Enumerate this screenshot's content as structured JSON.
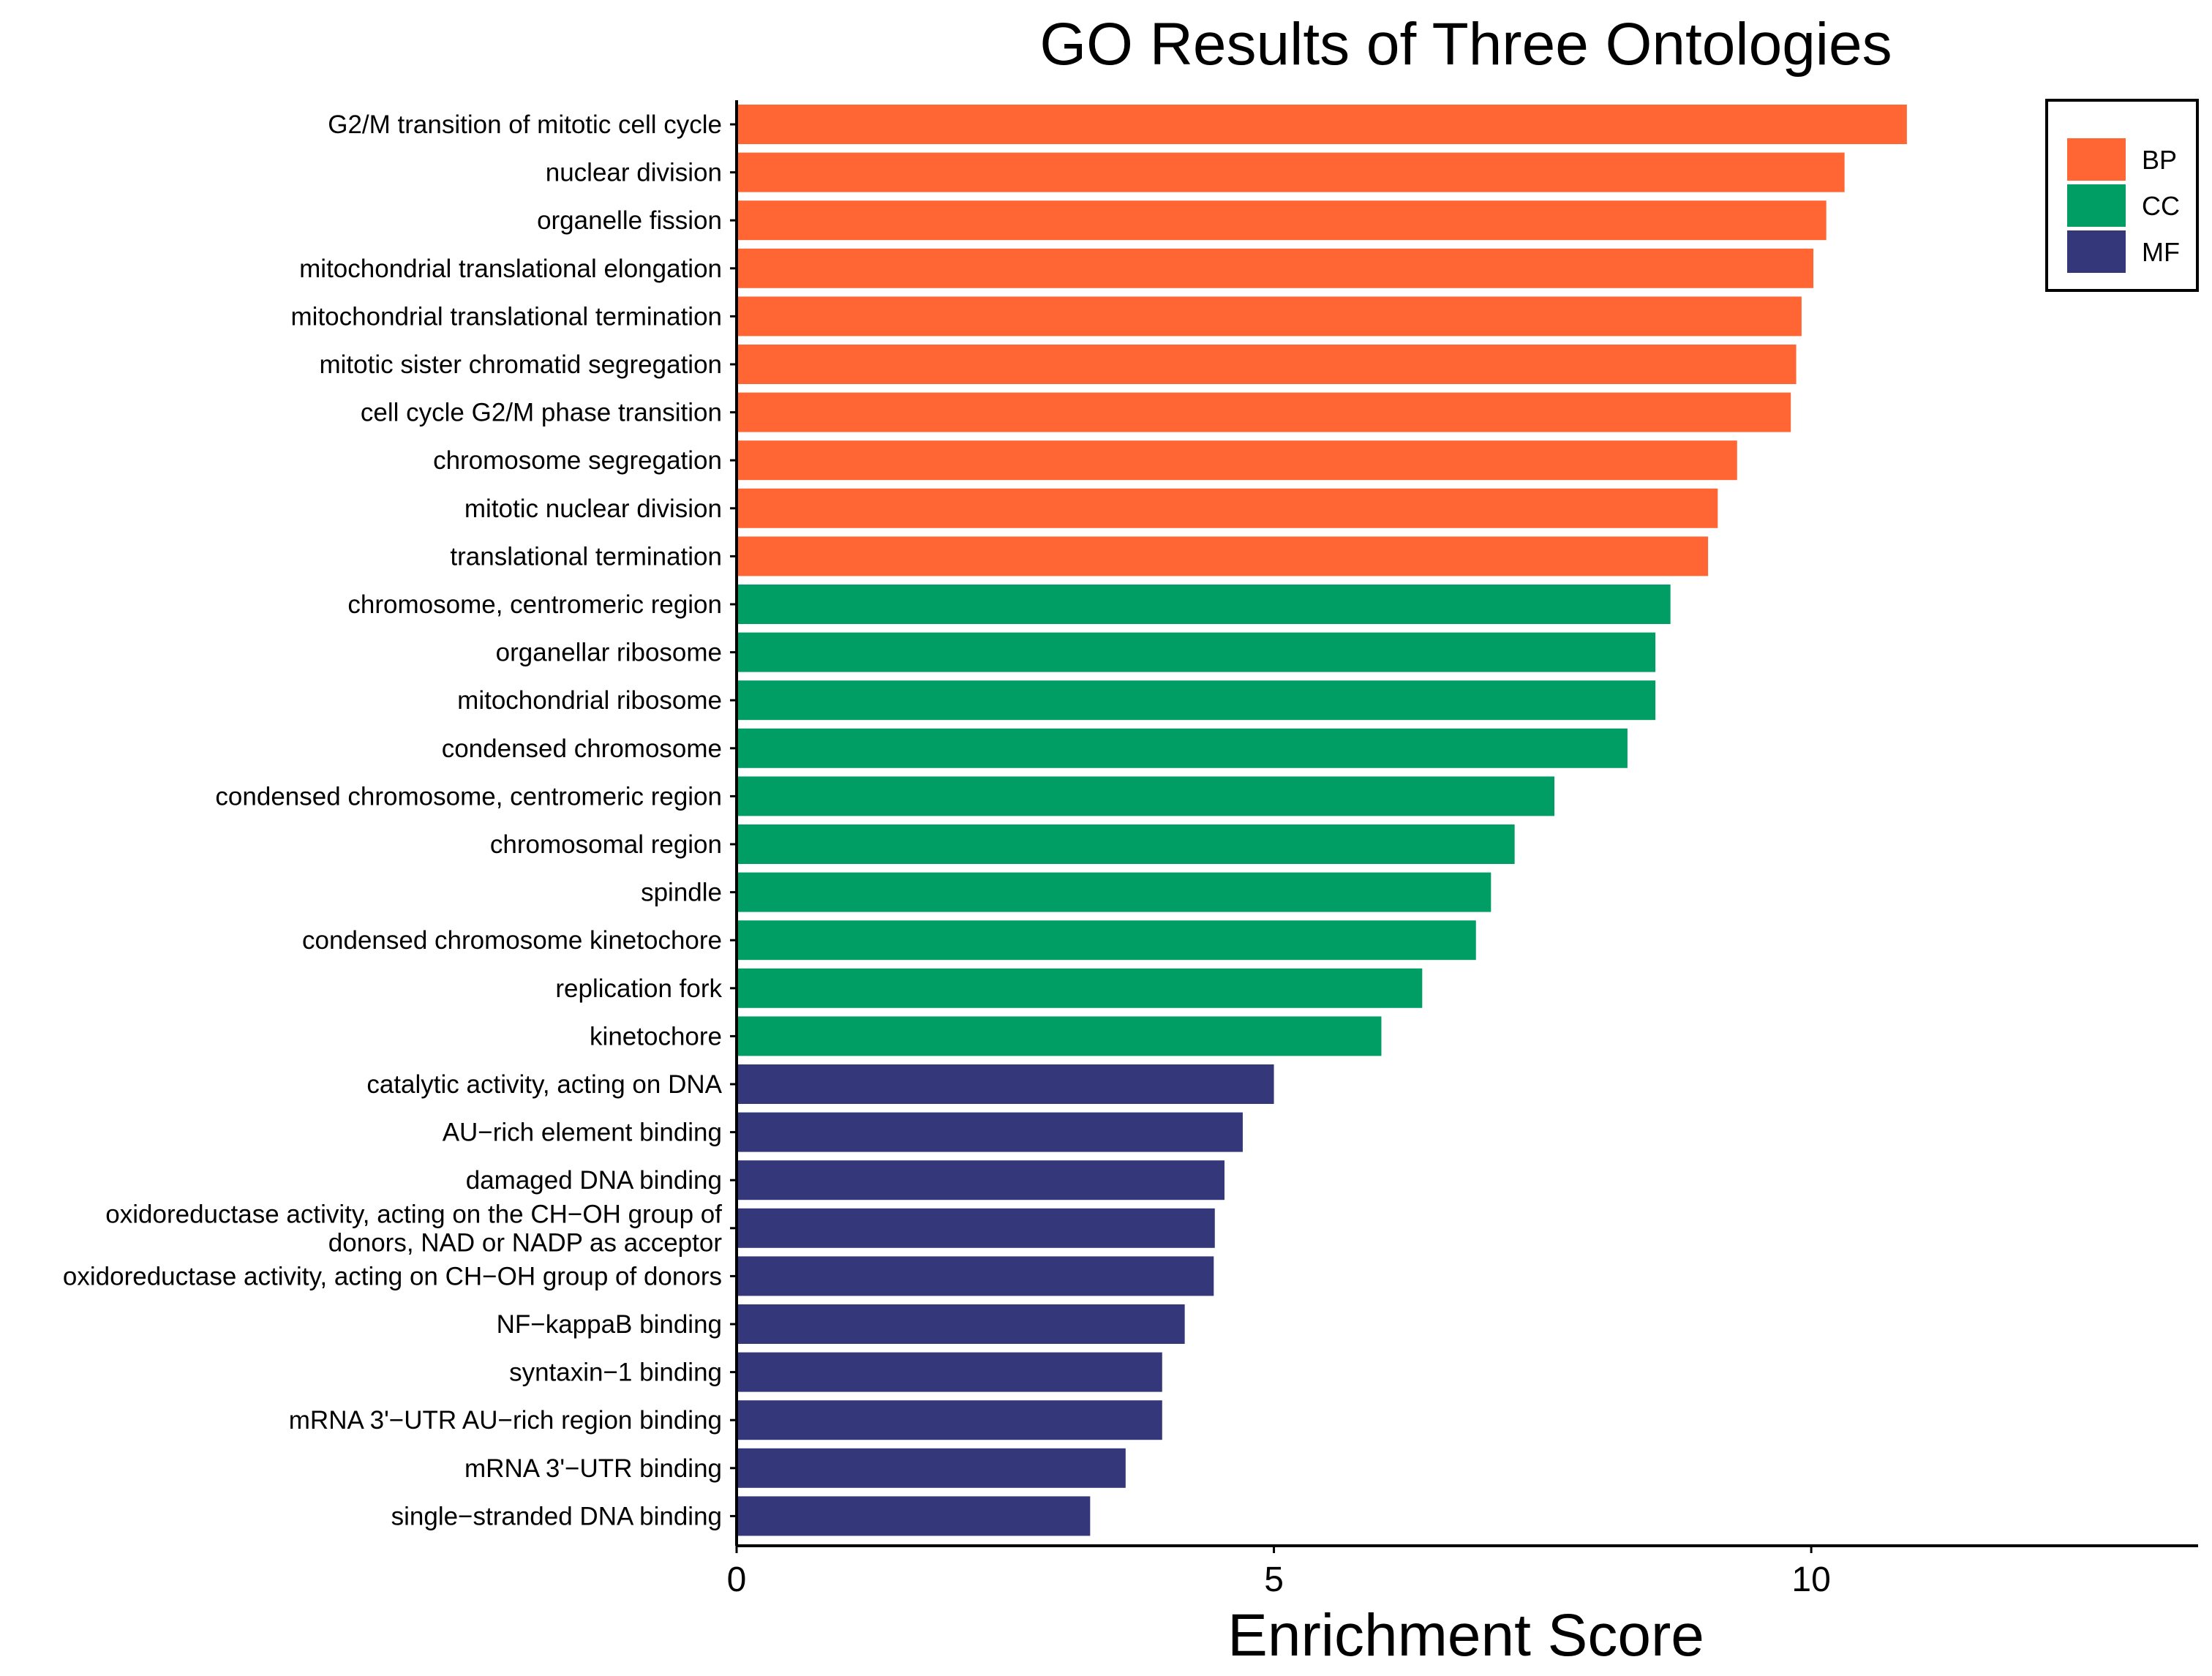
{
  "chart_data": {
    "type": "bar",
    "orientation": "horizontal",
    "title": "GO Results of Three Ontologies",
    "xlabel": "Enrichment Score",
    "ylabel": "",
    "xlim": [
      0,
      13.6
    ],
    "xticks": [
      0,
      5,
      10
    ],
    "legend": {
      "position": "top-right",
      "entries": [
        {
          "name": "BP",
          "color": "#FF6633"
        },
        {
          "name": "CC",
          "color": "#009E65"
        },
        {
          "name": "MF",
          "color": "#343779"
        }
      ]
    },
    "categories": [
      [
        "G2/M transition of mitotic cell cycle"
      ],
      [
        "nuclear division"
      ],
      [
        "organelle fission"
      ],
      [
        "mitochondrial translational elongation"
      ],
      [
        "mitochondrial translational termination"
      ],
      [
        "mitotic sister chromatid segregation"
      ],
      [
        "cell cycle G2/M phase transition"
      ],
      [
        "chromosome segregation"
      ],
      [
        "mitotic nuclear division"
      ],
      [
        "translational termination"
      ],
      [
        "chromosome, centromeric region"
      ],
      [
        "organellar ribosome"
      ],
      [
        "mitochondrial ribosome"
      ],
      [
        "condensed chromosome"
      ],
      [
        "condensed chromosome, centromeric region"
      ],
      [
        "chromosomal region"
      ],
      [
        "spindle"
      ],
      [
        "condensed chromosome kinetochore"
      ],
      [
        "replication fork"
      ],
      [
        "kinetochore"
      ],
      [
        "catalytic activity, acting on DNA"
      ],
      [
        "AU−rich element binding"
      ],
      [
        "damaged DNA binding"
      ],
      [
        "oxidoreductase activity, acting on the CH−OH group of",
        "donors, NAD or NADP as acceptor"
      ],
      [
        "oxidoreductase activity, acting on CH−OH group of donors"
      ],
      [
        "NF−kappaB binding"
      ],
      [
        "syntaxin−1 binding"
      ],
      [
        "mRNA 3'−UTR AU−rich region binding"
      ],
      [
        "mRNA 3'−UTR binding"
      ],
      [
        "single−stranded DNA binding"
      ]
    ],
    "groups": [
      "BP",
      "BP",
      "BP",
      "BP",
      "BP",
      "BP",
      "BP",
      "BP",
      "BP",
      "BP",
      "CC",
      "CC",
      "CC",
      "CC",
      "CC",
      "CC",
      "CC",
      "CC",
      "CC",
      "CC",
      "MF",
      "MF",
      "MF",
      "MF",
      "MF",
      "MF",
      "MF",
      "MF",
      "MF",
      "MF"
    ],
    "values": [
      10.89,
      10.31,
      10.14,
      10.02,
      9.91,
      9.86,
      9.81,
      9.31,
      9.13,
      9.04,
      8.69,
      8.55,
      8.55,
      8.29,
      7.61,
      7.24,
      7.02,
      6.88,
      6.38,
      6.0,
      5.0,
      4.71,
      4.54,
      4.45,
      4.44,
      4.17,
      3.96,
      3.96,
      3.62,
      3.29
    ]
  }
}
